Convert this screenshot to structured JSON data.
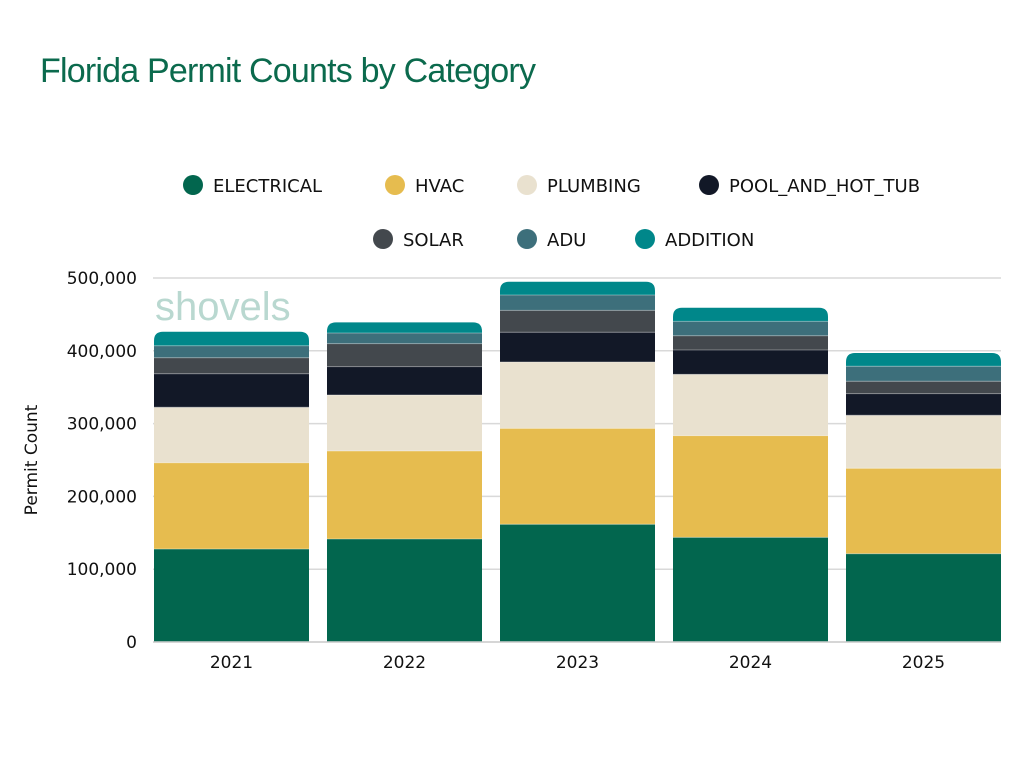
{
  "chart_data": {
    "type": "bar",
    "stacked": true,
    "title": "Florida Permit Counts by Category",
    "xlabel": "",
    "ylabel": "Permit Count",
    "ylim": [
      0,
      500000
    ],
    "yticks": [
      "0",
      "100,000",
      "200,000",
      "300,000",
      "400,000",
      "500,000"
    ],
    "ytick_values": [
      0,
      100000,
      200000,
      300000,
      400000,
      500000
    ],
    "grid": true,
    "legend_placement": "top",
    "watermark": "shovels",
    "categories": [
      "2021",
      "2022",
      "2023",
      "2024",
      "2025"
    ],
    "series": [
      {
        "name": "ELECTRICAL",
        "color": "#02664e",
        "values": [
          127700,
          141500,
          161700,
          143800,
          121300
        ]
      },
      {
        "name": "HVAC",
        "color": "#e6bc4f",
        "values": [
          118600,
          120900,
          131800,
          139600,
          117300
        ]
      },
      {
        "name": "PLUMBING",
        "color": "#e9e1cf",
        "values": [
          76100,
          76900,
          91100,
          84300,
          72800
        ]
      },
      {
        "name": "POOL_AND_HOT_TUB",
        "color": "#121827",
        "values": [
          46100,
          38900,
          40800,
          33400,
          29700
        ]
      },
      {
        "name": "SOLAR",
        "color": "#43484d",
        "values": [
          22000,
          31600,
          30200,
          19600,
          17000
        ]
      },
      {
        "name": "ADU",
        "color": "#3d6f7b",
        "values": [
          16500,
          14600,
          21000,
          19800,
          20600
        ]
      },
      {
        "name": "ADDITION",
        "color": "#00878a",
        "values": [
          19200,
          14700,
          18300,
          18700,
          18300
        ]
      }
    ]
  }
}
